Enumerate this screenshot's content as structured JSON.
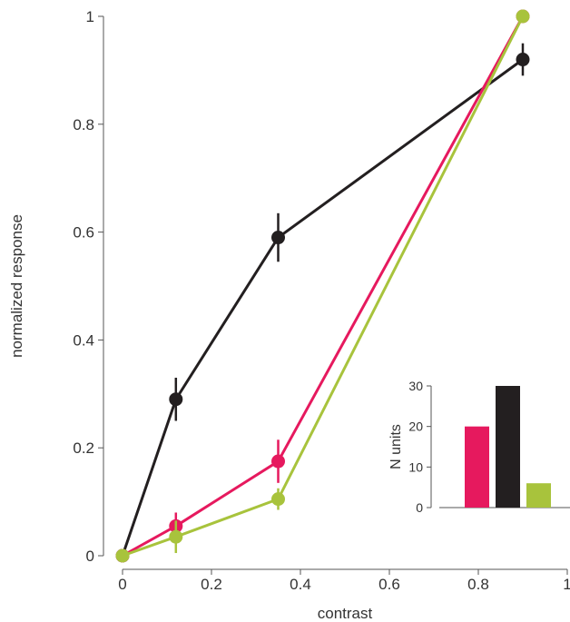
{
  "chart_data": [
    {
      "type": "line",
      "title": "",
      "xlabel": "contrast",
      "ylabel": "normalized response",
      "xlim": [
        0,
        1
      ],
      "ylim": [
        0,
        1
      ],
      "xticks": [
        0,
        0.2,
        0.4,
        0.6,
        0.8,
        1
      ],
      "xtick_labels": [
        "0",
        "0.2",
        "0.4",
        "0.6",
        "0.8",
        "1"
      ],
      "yticks": [
        0,
        0.2,
        0.4,
        0.6,
        0.8,
        1
      ],
      "ytick_labels": [
        "0",
        "0.2",
        "0.4",
        "0.6",
        "0.8",
        "1"
      ],
      "grid": false,
      "legend": "none",
      "series": [
        {
          "color": "#231f20",
          "x": [
            0,
            0.12,
            0.35,
            0.9
          ],
          "y": [
            0,
            0.29,
            0.59,
            0.92
          ],
          "err": [
            0,
            0.04,
            0.045,
            0.03
          ]
        },
        {
          "color": "#e6195e",
          "x": [
            0,
            0.12,
            0.35,
            0.9
          ],
          "y": [
            0,
            0.055,
            0.175,
            1.0
          ],
          "err": [
            0,
            0.025,
            0.04,
            0.01
          ]
        },
        {
          "color": "#a8c33c",
          "x": [
            0,
            0.12,
            0.35,
            0.9
          ],
          "y": [
            0,
            0.035,
            0.105,
            1.0
          ],
          "err": [
            0,
            0.03,
            0.02,
            0.01
          ]
        }
      ]
    },
    {
      "type": "bar",
      "title": "",
      "xlabel": "",
      "ylabel": "N units",
      "ylim": [
        0,
        30
      ],
      "yticks": [
        0,
        10,
        20,
        30
      ],
      "ytick_labels": [
        "0",
        "10",
        "20",
        "30"
      ],
      "values": [
        20,
        30,
        6
      ],
      "colors": [
        "#e6195e",
        "#231f20",
        "#a8c33c"
      ]
    }
  ]
}
